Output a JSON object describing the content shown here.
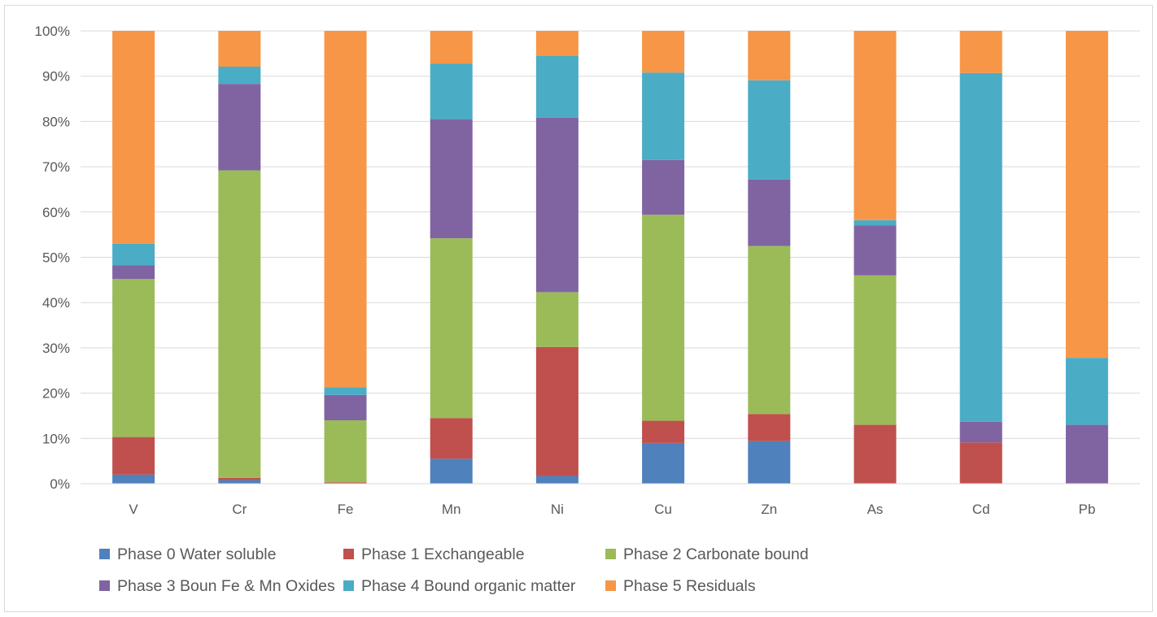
{
  "chart_data": {
    "type": "bar",
    "stacked": "percent",
    "title": "",
    "xlabel": "",
    "ylabel": "",
    "ylim": [
      0,
      100
    ],
    "y_ticks": [
      "0%",
      "10%",
      "20%",
      "30%",
      "40%",
      "50%",
      "60%",
      "70%",
      "80%",
      "90%",
      "100%"
    ],
    "grid": true,
    "legend_position": "bottom",
    "categories": [
      "V",
      "Cr",
      "Fe",
      "Mn",
      "Ni",
      "Cu",
      "Zn",
      "As",
      "Cd",
      "Pb"
    ],
    "series": [
      {
        "name": "Phase 0 Water soluble",
        "color": "#4F81BD",
        "values": [
          2.0,
          0.8,
          0.0,
          5.5,
          1.7,
          9.0,
          9.4,
          0.0,
          0.0,
          0.0
        ]
      },
      {
        "name": "Phase 1 Exchangeable",
        "color": "#C0504D",
        "values": [
          8.3,
          0.5,
          0.3,
          9.0,
          28.5,
          4.9,
          6.0,
          13.0,
          9.1,
          0.0
        ]
      },
      {
        "name": "Phase 2 Carbonate bound",
        "color": "#9BBB59",
        "values": [
          34.9,
          67.9,
          13.7,
          39.7,
          12.1,
          45.5,
          37.1,
          33.0,
          0.0,
          0.0
        ]
      },
      {
        "name": "Phase 3 Boun Fe & Mn Oxides",
        "color": "#8064A2",
        "values": [
          3.0,
          19.1,
          5.6,
          26.3,
          38.5,
          12.1,
          14.7,
          11.0,
          4.6,
          13.0
        ]
      },
      {
        "name": "Phase 4 Bound organic matter",
        "color": "#4BACC6",
        "values": [
          4.8,
          3.8,
          1.7,
          12.3,
          13.7,
          19.3,
          21.9,
          1.2,
          77.0,
          14.8
        ]
      },
      {
        "name": "Phase 5 Residuals",
        "color": "#F79646",
        "values": [
          47.0,
          7.9,
          78.7,
          7.2,
          5.5,
          9.2,
          10.9,
          41.8,
          9.3,
          72.2
        ]
      }
    ]
  }
}
